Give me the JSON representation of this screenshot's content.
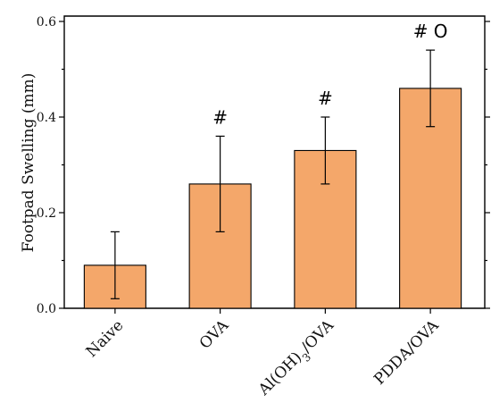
{
  "chart_data": {
    "type": "bar",
    "categories": [
      "Naive",
      "OVA",
      "Al(OH)3/OVA",
      "PDDA/OVA"
    ],
    "category_labels": [
      {
        "parts": [
          {
            "text": "Naive"
          }
        ]
      },
      {
        "parts": [
          {
            "text": "OVA"
          }
        ]
      },
      {
        "parts": [
          {
            "text": "Al(OH)"
          },
          {
            "text": "3",
            "sub": true
          },
          {
            "text": "/OVA"
          }
        ]
      },
      {
        "parts": [
          {
            "text": "PDDA/OVA"
          }
        ]
      }
    ],
    "values": [
      0.09,
      0.26,
      0.33,
      0.46
    ],
    "errors": [
      0.07,
      0.1,
      0.07,
      0.08
    ],
    "annotations": [
      "",
      "#",
      "#",
      "# O"
    ],
    "ylabel": "Footpad Swelling (mm)",
    "xlabel": "",
    "ylim": [
      0,
      0.6
    ],
    "yticks": [
      0.0,
      0.2,
      0.4,
      0.6
    ],
    "ytick_labels": [
      "0.0",
      "0.2",
      "0.4",
      "0.6"
    ],
    "bar_color": "#f4a76a",
    "grid": false
  }
}
